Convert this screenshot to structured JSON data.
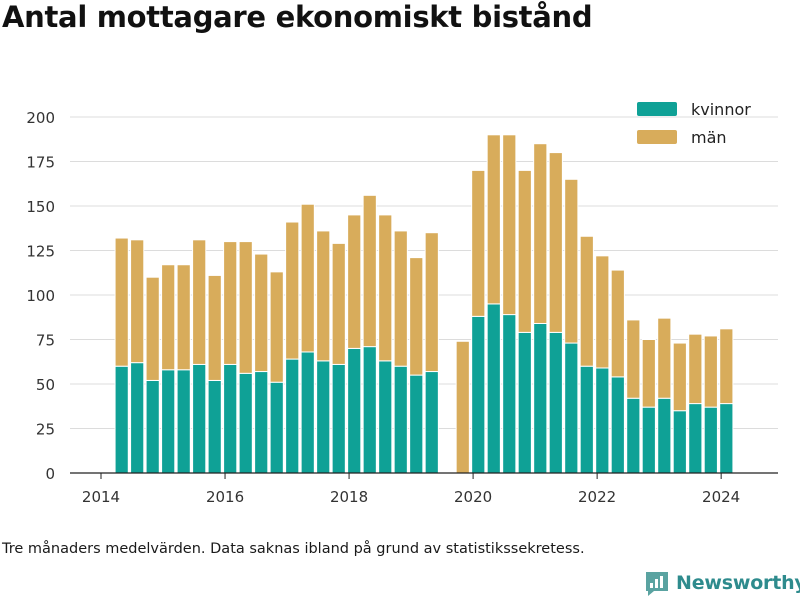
{
  "title": "Antal mottagare ekonomiskt bistånd",
  "caption": "Tre månaders medelvärden. Data saknas ibland på grund av statistikssekretess.",
  "brand": {
    "name": "Newsworthy",
    "icon": "newsworthy-logo-icon",
    "color": "#2e8b8d"
  },
  "colors": {
    "kvinnor": "#0fa196",
    "man": "#d8ac5b",
    "grid": "#dcdcdc",
    "axis": "#222222"
  },
  "chart_data": {
    "type": "bar",
    "stacked": true,
    "x_axis": {
      "type": "time",
      "ticks": [
        "2014",
        "2016",
        "2018",
        "2020",
        "2022",
        "2024"
      ],
      "range": [
        "2013-07",
        "2024-12"
      ]
    },
    "y_axis": {
      "ticks": [
        "0",
        "25",
        "50",
        "75",
        "100",
        "125",
        "150",
        "175",
        "200"
      ],
      "ylim": [
        0,
        200
      ]
    },
    "grid": "horizontal",
    "legend": {
      "position": "top-right"
    },
    "x": [
      "2014-05",
      "2014-08",
      "2014-11",
      "2015-02",
      "2015-05",
      "2015-08",
      "2015-11",
      "2016-02",
      "2016-05",
      "2016-08",
      "2016-11",
      "2017-02",
      "2017-05",
      "2017-08",
      "2017-11",
      "2018-02",
      "2018-05",
      "2018-08",
      "2018-11",
      "2019-02",
      "2019-05",
      "2019-11",
      "2020-02",
      "2020-05",
      "2020-08",
      "2020-11",
      "2021-02",
      "2021-05",
      "2021-08",
      "2021-11",
      "2022-02",
      "2022-05",
      "2022-08",
      "2022-11",
      "2023-02",
      "2023-05",
      "2023-08",
      "2023-11",
      "2024-02"
    ],
    "series": [
      {
        "name": "kvinnor",
        "color": "#0fa196",
        "values": [
          60,
          62,
          52,
          58,
          58,
          61,
          52,
          61,
          56,
          57,
          51,
          64,
          68,
          63,
          61,
          70,
          71,
          63,
          60,
          55,
          57,
          null,
          88,
          95,
          89,
          79,
          84,
          79,
          73,
          60,
          59,
          54,
          42,
          37,
          42,
          35,
          39,
          37,
          39
        ]
      },
      {
        "name": "män",
        "color": "#d8ac5b",
        "values": [
          72,
          69,
          58,
          59,
          59,
          70,
          59,
          69,
          74,
          66,
          62,
          77,
          83,
          73,
          68,
          75,
          85,
          82,
          76,
          66,
          78,
          74,
          82,
          95,
          101,
          91,
          101,
          101,
          92,
          73,
          63,
          60,
          44,
          38,
          45,
          38,
          39,
          40,
          42
        ]
      }
    ]
  }
}
